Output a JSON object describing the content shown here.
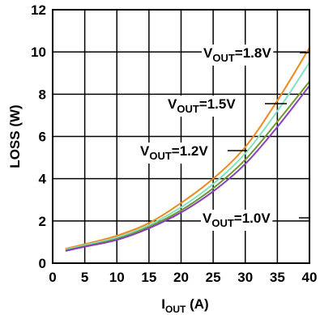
{
  "chart_data": {
    "type": "line",
    "xlabel": {
      "main": "I",
      "sub": "OUT",
      "unit": " (A)"
    },
    "ylabel": "LOSS (W)",
    "xlim": [
      0,
      40
    ],
    "ylim": [
      0,
      12
    ],
    "xticks": [
      "0",
      "5",
      "10",
      "15",
      "20",
      "25",
      "30",
      "35",
      "40"
    ],
    "yticks": [
      "0",
      "2",
      "4",
      "6",
      "8",
      "10",
      "12"
    ],
    "grid": true,
    "series": [
      {
        "name": {
          "main": "V",
          "sub": "OUT",
          "value": "=1.8V"
        },
        "color": "#f08a1c",
        "x": [
          2,
          5,
          10,
          15,
          20,
          25,
          30,
          35,
          40
        ],
        "y": [
          0.68,
          0.9,
          1.3,
          1.9,
          2.85,
          4.0,
          5.5,
          7.7,
          10.2
        ]
      },
      {
        "name": {
          "main": "V",
          "sub": "OUT",
          "value": "=1.5V"
        },
        "color": "#7fe3c2",
        "x": [
          2,
          5,
          10,
          15,
          20,
          25,
          30,
          35,
          40
        ],
        "y": [
          0.64,
          0.85,
          1.22,
          1.8,
          2.65,
          3.75,
          5.2,
          7.2,
          9.5
        ]
      },
      {
        "name": {
          "main": "V",
          "sub": "OUT",
          "value": "=1.2V"
        },
        "color": "#6e9a2a",
        "x": [
          2,
          5,
          10,
          15,
          20,
          25,
          30,
          35,
          40
        ],
        "y": [
          0.6,
          0.8,
          1.15,
          1.72,
          2.5,
          3.55,
          4.9,
          6.7,
          8.6
        ]
      },
      {
        "name": {
          "main": "V",
          "sub": "OUT",
          "value": "=1.0V"
        },
        "color": "#8a3fc0",
        "x": [
          2,
          5,
          10,
          15,
          20,
          25,
          30,
          35,
          40
        ],
        "y": [
          0.58,
          0.78,
          1.1,
          1.65,
          2.4,
          3.4,
          4.7,
          6.45,
          8.4
        ]
      }
    ]
  }
}
